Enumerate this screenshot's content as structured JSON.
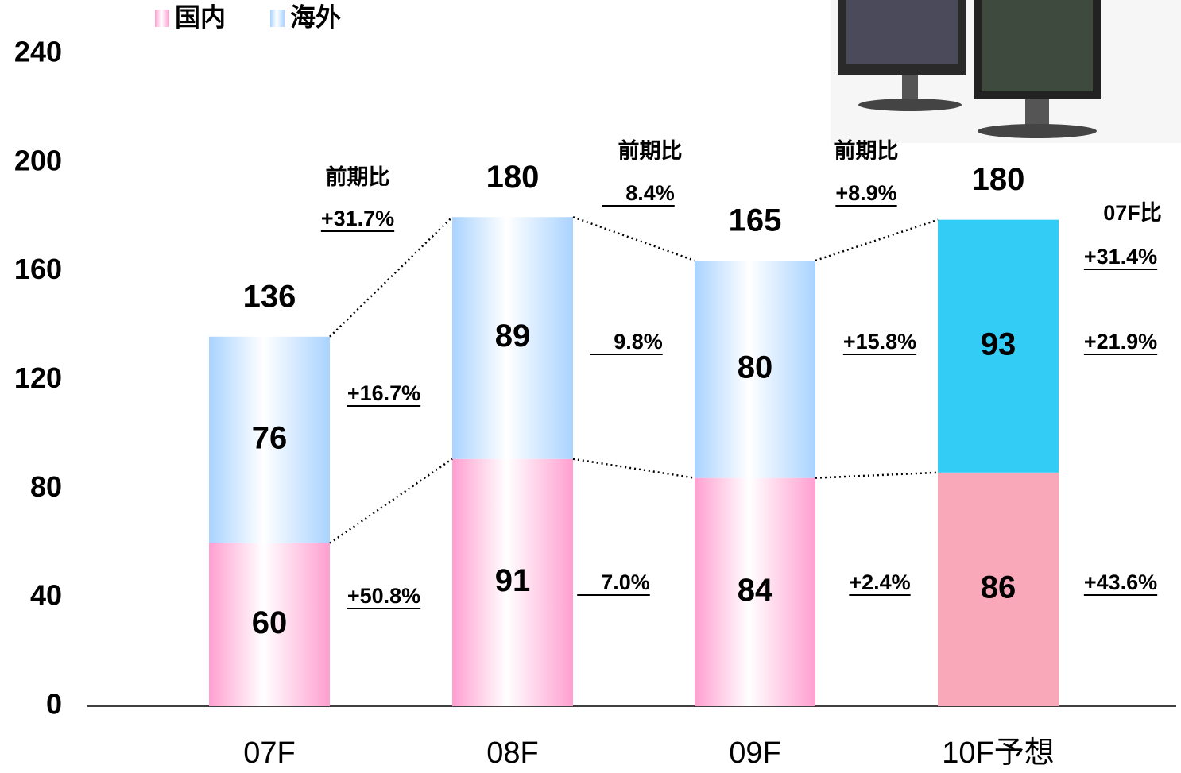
{
  "chart_data": {
    "type": "stacked-bar",
    "categories": [
      "07F",
      "08F",
      "09F",
      "10F予想"
    ],
    "series": [
      {
        "name": "国内",
        "color": "#ff9fd0",
        "forecast_color": "#f8a8b8",
        "values": [
          60,
          91,
          84,
          86
        ]
      },
      {
        "name": "海外",
        "color": "#a9d3ff",
        "forecast_color": "#33ccf5",
        "values": [
          76,
          89,
          80,
          93
        ]
      }
    ],
    "totals": [
      136,
      180,
      165,
      180
    ],
    "ylim": [
      0,
      240
    ],
    "yticks": [
      0,
      40,
      80,
      120,
      160,
      200,
      240
    ],
    "grid": false,
    "comparisons": [
      {
        "header": "前期比",
        "total": "+31.7%",
        "overseas": "+16.7%",
        "domestic": "+50.8%"
      },
      {
        "header": "前期比",
        "total": "8.4%",
        "overseas": "9.8%",
        "domestic": "7.0%"
      },
      {
        "header": "前期比",
        "total": "+8.9%",
        "overseas": "+15.8%",
        "domestic": "+2.4%"
      },
      {
        "header": "07F比",
        "total": "+31.4%",
        "overseas": "+21.9%",
        "domestic": "+43.6%"
      }
    ]
  }
}
